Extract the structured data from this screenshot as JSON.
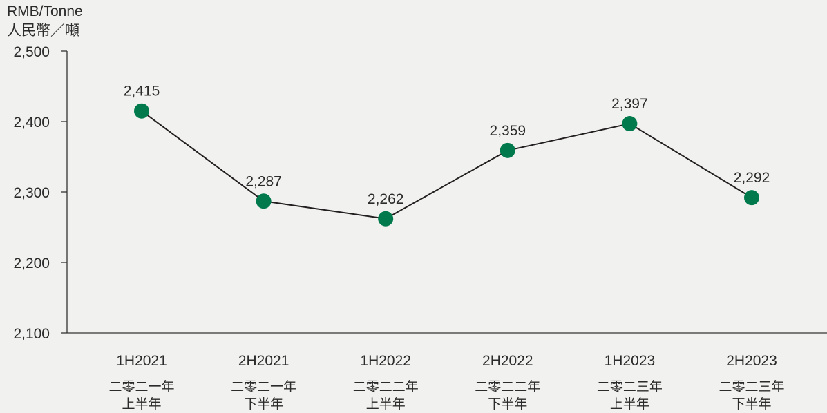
{
  "chart_data": {
    "type": "line",
    "ylabel_en": "RMB/Tonne",
    "ylabel_zh": "人民幣／噸",
    "ylim": [
      2100,
      2500
    ],
    "yticks": [
      2100,
      2200,
      2300,
      2400,
      2500
    ],
    "ytick_labels": [
      "2,100",
      "2,200",
      "2,300",
      "2,400",
      "2,500"
    ],
    "categories": [
      "1H2021",
      "2H2021",
      "1H2022",
      "2H2022",
      "1H2023",
      "2H2023"
    ],
    "categories_zh_line1": [
      "二零二一年",
      "二零二一年",
      "二零二二年",
      "二零二二年",
      "二零二三年",
      "二零二三年"
    ],
    "categories_zh_line2": [
      "上半年",
      "下半年",
      "上半年",
      "下半年",
      "上半年",
      "下半年"
    ],
    "values": [
      2415,
      2287,
      2262,
      2359,
      2397,
      2292
    ],
    "value_labels": [
      "2,415",
      "2,287",
      "2,262",
      "2,359",
      "2,397",
      "2,292"
    ],
    "grid": false,
    "legend": "none",
    "marker_color": "#007a4d",
    "line_color": "#231f20",
    "background_color": "#f1f1ef"
  }
}
